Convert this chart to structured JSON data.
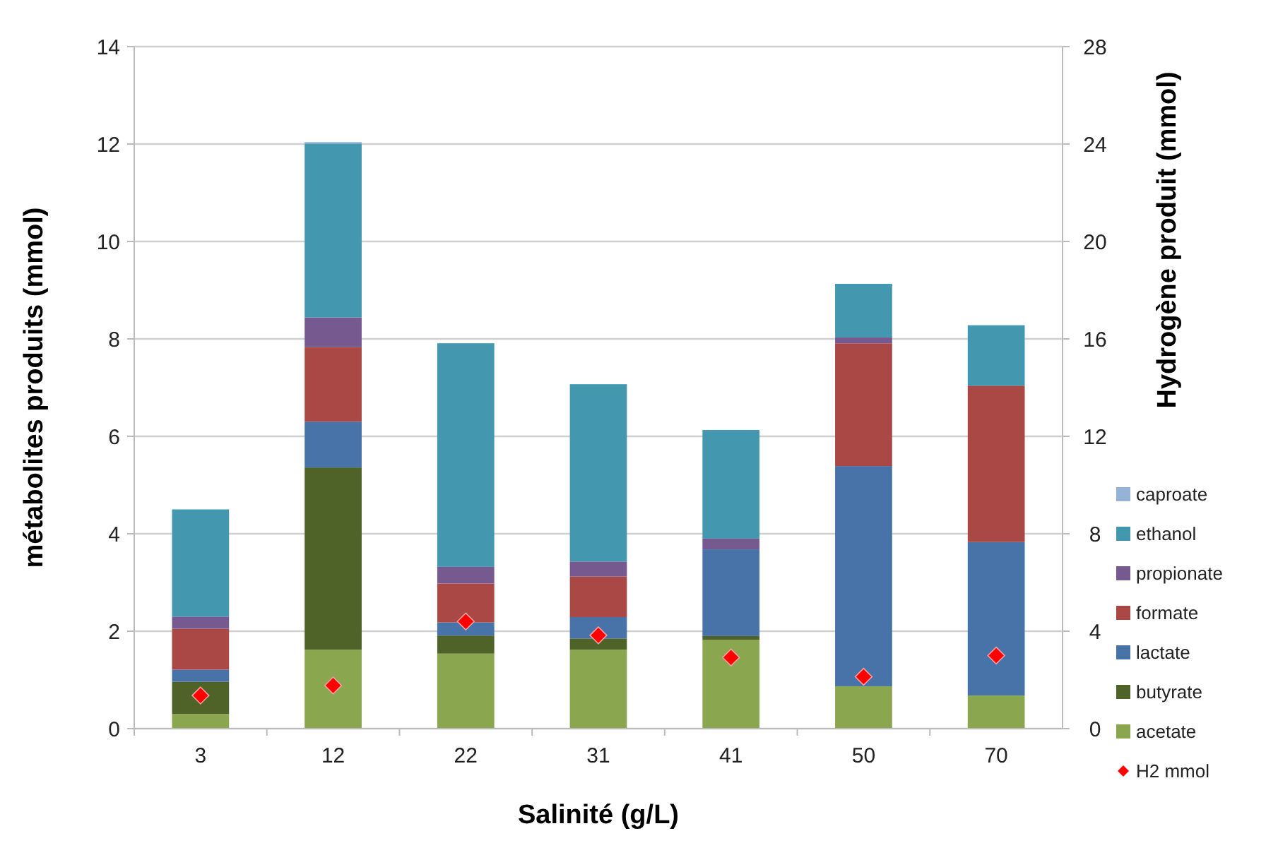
{
  "chart_data": {
    "type": "bar",
    "stacked": true,
    "xlabel": "Salinité (g/L)",
    "ylabel": "métabolites produits (mmol)",
    "y2label": "Hydrogène produit (mmol)",
    "categories": [
      "3",
      "12",
      "22",
      "31",
      "41",
      "50",
      "70"
    ],
    "series": [
      {
        "name": "acetate",
        "color": "#8aa64e",
        "values": [
          0.3,
          1.62,
          1.54,
          1.62,
          1.82,
          0.87,
          0.68
        ]
      },
      {
        "name": "butyrate",
        "color": "#4f6228",
        "values": [
          0.66,
          3.74,
          0.37,
          0.23,
          0.08,
          null,
          null
        ]
      },
      {
        "name": "lactate",
        "color": "#4773a8",
        "values": [
          0.25,
          0.94,
          0.27,
          0.44,
          1.78,
          4.52,
          3.15
        ]
      },
      {
        "name": "formate",
        "color": "#aa4845",
        "values": [
          0.84,
          1.53,
          0.8,
          0.83,
          null,
          2.52,
          3.21
        ]
      },
      {
        "name": "propionate",
        "color": "#765a8f",
        "values": [
          0.25,
          0.61,
          0.34,
          0.31,
          0.22,
          0.12,
          null
        ]
      },
      {
        "name": "ethanol",
        "color": "#4398b0",
        "values": [
          2.2,
          3.57,
          4.59,
          3.64,
          2.23,
          1.1,
          1.24
        ]
      },
      {
        "name": "caproate",
        "color": "#95b3d7",
        "values": [
          null,
          0.03,
          null,
          null,
          null,
          null,
          null
        ]
      },
      {
        "name": "H2 mmol",
        "type": "scatter",
        "axis": "y2",
        "color": "#ff0000",
        "values": [
          1.36,
          1.77,
          4.4,
          3.83,
          2.92,
          2.13,
          3.0
        ]
      }
    ],
    "ylim": [
      0,
      14
    ],
    "yticks": [
      0,
      2,
      4,
      6,
      8,
      10,
      12,
      14
    ],
    "y2lim": [
      0,
      28
    ],
    "y2ticks": [
      0,
      4,
      8,
      12,
      16,
      20,
      24,
      28
    ],
    "grid": "y",
    "legend": "right",
    "marker": "diamond"
  }
}
